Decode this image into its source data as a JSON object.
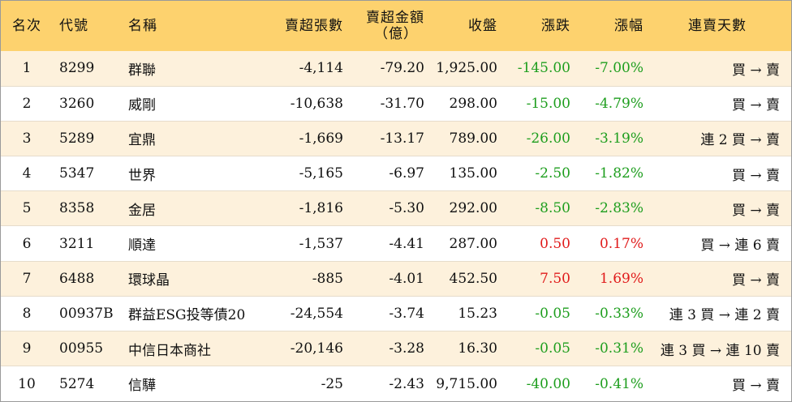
{
  "headers": {
    "rank": "名次",
    "code": "代號",
    "name": "名稱",
    "net_sell_volume": "賣超張數",
    "net_sell_amount_line1": "賣超金額",
    "net_sell_amount_line2": "（億）",
    "close": "收盤",
    "change": "漲跌",
    "change_pct": "漲幅",
    "consecutive_sell_days": "連賣天數"
  },
  "colors": {
    "header_bg": "#fdd26e",
    "row_alt_bg": "#fdf1dc",
    "down": "#1e9e1e",
    "up": "#e01b1b"
  },
  "rows": [
    {
      "rank": "1",
      "code": "8299",
      "name": "群聯",
      "volume": "-4,114",
      "amount": "-79.20",
      "close": "1,925.00",
      "change": "-145.00",
      "pct": "-7.00%",
      "trend": "down",
      "days": "買 → 賣"
    },
    {
      "rank": "2",
      "code": "3260",
      "name": "威剛",
      "volume": "-10,638",
      "amount": "-31.70",
      "close": "298.00",
      "change": "-15.00",
      "pct": "-4.79%",
      "trend": "down",
      "days": "買 → 賣"
    },
    {
      "rank": "3",
      "code": "5289",
      "name": "宜鼎",
      "volume": "-1,669",
      "amount": "-13.17",
      "close": "789.00",
      "change": "-26.00",
      "pct": "-3.19%",
      "trend": "down",
      "days": "連 2 買 → 賣"
    },
    {
      "rank": "4",
      "code": "5347",
      "name": "世界",
      "volume": "-5,165",
      "amount": "-6.97",
      "close": "135.00",
      "change": "-2.50",
      "pct": "-1.82%",
      "trend": "down",
      "days": "買 → 賣"
    },
    {
      "rank": "5",
      "code": "8358",
      "name": "金居",
      "volume": "-1,816",
      "amount": "-5.30",
      "close": "292.00",
      "change": "-8.50",
      "pct": "-2.83%",
      "trend": "down",
      "days": "買 → 賣"
    },
    {
      "rank": "6",
      "code": "3211",
      "name": "順達",
      "volume": "-1,537",
      "amount": "-4.41",
      "close": "287.00",
      "change": "0.50",
      "pct": "0.17%",
      "trend": "up",
      "days": "買 → 連 6 賣"
    },
    {
      "rank": "7",
      "code": "6488",
      "name": "環球晶",
      "volume": "-885",
      "amount": "-4.01",
      "close": "452.50",
      "change": "7.50",
      "pct": "1.69%",
      "trend": "up",
      "days": "買 → 賣"
    },
    {
      "rank": "8",
      "code": "00937B",
      "name": "群益ESG投等債20",
      "volume": "-24,554",
      "amount": "-3.74",
      "close": "15.23",
      "change": "-0.05",
      "pct": "-0.33%",
      "trend": "down",
      "days": "連 3 買 → 連 2 賣"
    },
    {
      "rank": "9",
      "code": "00955",
      "name": "中信日本商社",
      "volume": "-20,146",
      "amount": "-3.28",
      "close": "16.30",
      "change": "-0.05",
      "pct": "-0.31%",
      "trend": "down",
      "days": "連 3 買 → 連 10 賣"
    },
    {
      "rank": "10",
      "code": "5274",
      "name": "信驊",
      "volume": "-25",
      "amount": "-2.43",
      "close": "9,715.00",
      "change": "-40.00",
      "pct": "-0.41%",
      "trend": "down",
      "days": "買 → 賣"
    }
  ]
}
